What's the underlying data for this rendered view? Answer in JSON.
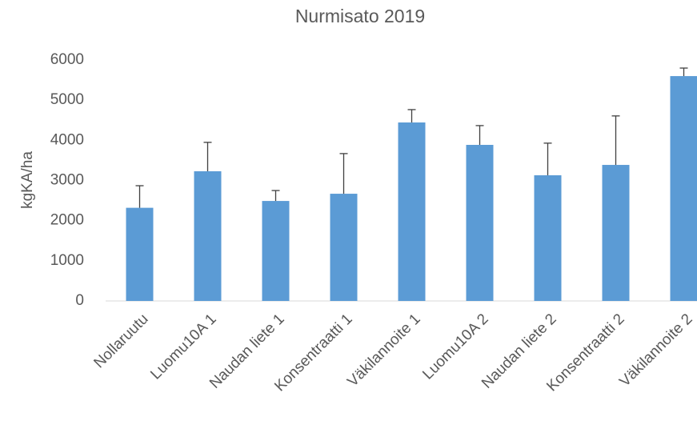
{
  "chart_data": {
    "type": "bar",
    "title": "Nurmisato 2019",
    "y_label": "kgKA/ha",
    "categories": [
      "Nollaruutu",
      "Luomu10A 1",
      "Naudan liete 1",
      "Konsentraatti 1",
      "Väkilannoite 1",
      "Luomu10A 2",
      "Naudan liete 2",
      "Konsentraatti 2",
      "Väkilannoite 2"
    ],
    "values": [
      2320,
      3230,
      2490,
      2670,
      4445,
      3887,
      3130,
      3388,
      5600
    ],
    "errors": [
      550,
      720,
      260,
      1000,
      320,
      480,
      800,
      1220,
      200
    ],
    "color": "#5b9bd5",
    "error_color": "#404040",
    "ylim": [
      0,
      6000
    ],
    "yticks": [
      0,
      1000,
      2000,
      3000,
      4000,
      5000,
      6000
    ],
    "grid": false
  }
}
